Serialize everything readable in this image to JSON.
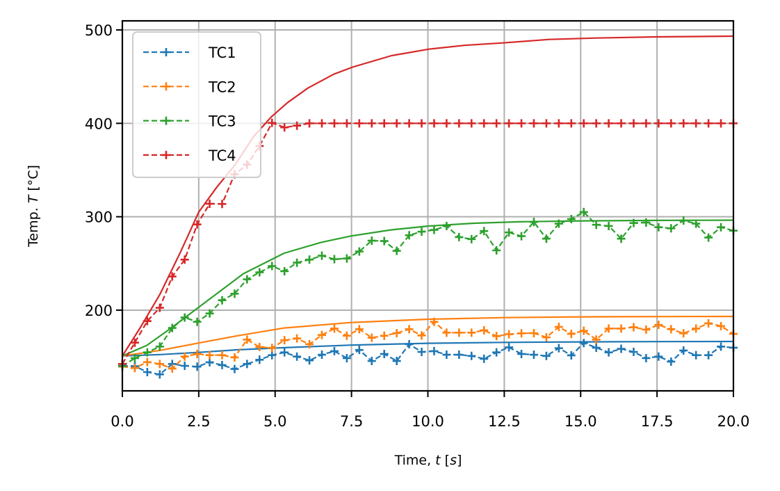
{
  "chart_data": {
    "type": "line",
    "title": "",
    "xlabel": {
      "prefix": "Time, ",
      "var": "t",
      "unit": "s"
    },
    "ylabel": {
      "prefix": "Temp. ",
      "var": "T",
      "unit": "°C"
    },
    "xlim": [
      0,
      20
    ],
    "ylim": [
      113.6,
      509.7
    ],
    "x_ticks": [
      0,
      2.5,
      5,
      7.5,
      10,
      12.5,
      15,
      17.5,
      20
    ],
    "x_tick_labels": [
      "0.0",
      "2.5",
      "5.0",
      "7.5",
      "10.0",
      "12.5",
      "15.0",
      "17.5",
      "20.0"
    ],
    "y_ticks": [
      200,
      300,
      400,
      500
    ],
    "y_tick_labels": [
      "200",
      "300",
      "400",
      "500"
    ],
    "grid": true,
    "legend": {
      "placement": "top-left",
      "entries": [
        "TC1",
        "TC2",
        "TC3",
        "TC4"
      ]
    },
    "measured_x": {
      "start": 0,
      "end": 20,
      "count": 50
    },
    "series": [
      {
        "name": "TC1",
        "color": "#1f77b4",
        "values": [
          140.4,
          140.0,
          133.7,
          131.2,
          142.4,
          140.4,
          139.5,
          144.2,
          141.2,
          137.0,
          142.4,
          146.9,
          151.8,
          154.8,
          150.3,
          146.2,
          152.3,
          156.1,
          148.6,
          157.4,
          145.6,
          153.1,
          145.6,
          163.5,
          155.3,
          156.1,
          152.3,
          152.3,
          151.0,
          147.9,
          154.8,
          160.2,
          153.1,
          152.3,
          151.0,
          159.3,
          151.6,
          164.8,
          159.8,
          154.8,
          158.6,
          155.3,
          148.6,
          150.3,
          144.9,
          156.8,
          151.8,
          151.8,
          161.0,
          159.8
        ],
        "model": {
          "t": [
            0,
            1.25,
            2.5,
            3.75,
            5.3,
            7.5,
            10,
            12.5,
            15,
            17.5,
            20
          ],
          "values": [
            151,
            152.5,
            154.8,
            157.5,
            159.8,
            162.6,
            164.5,
            165.5,
            166.0,
            166.3,
            166.5
          ]
        }
      },
      {
        "name": "TC2",
        "color": "#ff7f0e",
        "values": [
          139.5,
          138.0,
          144.4,
          142.4,
          137.5,
          150.3,
          153.1,
          151.8,
          151.8,
          149.4,
          168.5,
          160.5,
          159.6,
          167.8,
          169.7,
          163.5,
          173.4,
          180.3,
          172.6,
          179.6,
          170.5,
          172.6,
          175.4,
          179.6,
          172.9,
          187.5,
          175.9,
          175.9,
          175.9,
          178.4,
          172.2,
          174.2,
          175.2,
          175.4,
          170.9,
          182.1,
          174.6,
          177.9,
          168.5,
          180.3,
          180.3,
          181.7,
          179.2,
          184.2,
          179.6,
          175.2,
          180.3,
          185.9,
          182.9,
          174.6
        ],
        "model": {
          "t": [
            0,
            1.25,
            2.5,
            3.75,
            5.3,
            7.5,
            10,
            12.5,
            15,
            17.5,
            20
          ],
          "values": [
            151,
            157,
            164.8,
            172.5,
            180.9,
            186.8,
            190.3,
            192.0,
            192.8,
            193.1,
            193.3
          ]
        }
      },
      {
        "name": "TC3",
        "color": "#2ca02c",
        "values": [
          140.0,
          148.6,
          154.8,
          161.0,
          180.9,
          192.1,
          187.5,
          196.5,
          210.6,
          217.6,
          233.0,
          240.5,
          247.2,
          241.7,
          250.8,
          254.1,
          258.3,
          254.6,
          255.3,
          262.8,
          274.4,
          274.0,
          263.5,
          280.2,
          284.0,
          285.9,
          290.1,
          278.2,
          276.0,
          284.7,
          264.0,
          283.2,
          279.2,
          294.4,
          276.5,
          292.6,
          297.5,
          305.0,
          291.4,
          290.1,
          276.5,
          293.3,
          293.8,
          288.8,
          287.6,
          295.9,
          292.6,
          277.7,
          288.8,
          285.1
        ],
        "model": {
          "t": [
            0,
            0.8,
            1.6,
            2.5,
            3.96,
            5.3,
            6.5,
            7.5,
            8.8,
            10,
            11.5,
            13,
            15,
            17.5,
            20
          ],
          "values": [
            151,
            162.3,
            180.9,
            203.2,
            239.0,
            261.0,
            272.5,
            279.5,
            286.0,
            290.0,
            293.0,
            294.6,
            295.6,
            296.1,
            296.3
          ]
        }
      },
      {
        "name": "TC4",
        "color": "#d62728",
        "values": [
          142.4,
          165.2,
          188.3,
          202.5,
          236.0,
          254.1,
          291.8,
          313.9,
          313.7,
          345.4,
          355.8,
          375.7,
          400.5,
          395.6,
          397.5,
          400.0,
          400.0,
          400.0,
          400.0,
          400.0,
          400.0,
          400.0,
          400.0,
          400.0,
          400.0,
          400.0,
          400.0,
          400.0,
          400.0,
          400.0,
          400.0,
          400.0,
          400.0,
          400.0,
          400.0,
          400.0,
          400.0,
          400.0,
          400.0,
          400.0,
          400.0,
          400.0,
          400.0,
          400.0,
          400.0,
          400.0,
          400.0,
          400.0,
          400.0,
          400.0
        ],
        "model": {
          "t": [
            0,
            0.6,
            1.23,
            1.9,
            2.5,
            3.1,
            3.7,
            4.3,
            4.87,
            5.4,
            6.07,
            6.92,
            7.53,
            8.81,
            10.03,
            11.2,
            12.45,
            13.97,
            15.5,
            17.5,
            20
          ],
          "values": [
            151,
            182,
            217,
            262,
            305,
            332,
            356,
            386,
            406.7,
            422,
            437.7,
            452.6,
            460.1,
            472.5,
            479.4,
            483.5,
            486.1,
            489.8,
            491.3,
            492.6,
            493.3
          ]
        }
      }
    ]
  }
}
